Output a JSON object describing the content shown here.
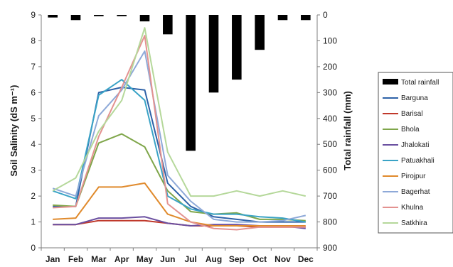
{
  "chart_data": {
    "type": "line",
    "categories": [
      "Jan",
      "Feb",
      "Mar",
      "Apr",
      "May",
      "Jun",
      "Jul",
      "Aug",
      "Sep",
      "Oct",
      "Nov",
      "Dec"
    ],
    "ylabel": "Soil Salinity (dS m⁻¹)",
    "y2label": "Total rainfall (mm)",
    "ylim": [
      0,
      9
    ],
    "yticks": [
      "0",
      "1",
      "2",
      "3",
      "4",
      "5",
      "6",
      "7",
      "8",
      "9"
    ],
    "y2lim": [
      0,
      900
    ],
    "y2_inverted": true,
    "y2ticks": [
      "0",
      "100",
      "200",
      "300",
      "400",
      "500",
      "600",
      "700",
      "800",
      "900"
    ],
    "grid": false,
    "legend_position": "right",
    "rainfall": {
      "name": "Total rainfall",
      "color": "#000000",
      "values": [
        10,
        20,
        5,
        5,
        25,
        75,
        525,
        300,
        250,
        135,
        20,
        20
      ]
    },
    "series": [
      {
        "name": "Barguna",
        "color": "#2e62a8",
        "values": [
          1.6,
          1.6,
          6.0,
          6.2,
          6.1,
          2.5,
          1.6,
          1.2,
          1.1,
          1.0,
          1.0,
          1.0
        ]
      },
      {
        "name": "Barisal",
        "color": "#c0392b",
        "values": [
          0.9,
          0.9,
          1.05,
          1.05,
          1.05,
          0.95,
          0.85,
          0.85,
          0.85,
          0.8,
          0.8,
          0.8
        ]
      },
      {
        "name": "Bhola",
        "color": "#7fa64a",
        "values": [
          1.65,
          1.6,
          4.05,
          4.4,
          3.9,
          2.2,
          1.4,
          1.3,
          1.35,
          1.1,
          1.1,
          1.05
        ]
      },
      {
        "name": "Jhalokati",
        "color": "#6a4fa0",
        "values": [
          0.9,
          0.9,
          1.15,
          1.15,
          1.2,
          0.95,
          0.85,
          0.9,
          0.9,
          0.85,
          0.85,
          0.75
        ]
      },
      {
        "name": "Patuakhali",
        "color": "#3aa3c6",
        "values": [
          2.2,
          1.9,
          5.9,
          6.5,
          5.7,
          2.0,
          1.5,
          1.3,
          1.3,
          1.2,
          1.15,
          1.0
        ]
      },
      {
        "name": "Pirojpur",
        "color": "#e08a2c",
        "values": [
          1.1,
          1.15,
          2.35,
          2.35,
          2.5,
          1.3,
          1.0,
          0.85,
          0.85,
          0.85,
          0.85,
          0.85
        ]
      },
      {
        "name": "Bagerhat",
        "color": "#8ea9d8",
        "values": [
          2.3,
          2.0,
          5.1,
          6.1,
          7.6,
          2.8,
          1.8,
          1.1,
          1.0,
          1.0,
          1.05,
          1.25
        ]
      },
      {
        "name": "Khulna",
        "color": "#e39290",
        "values": [
          1.55,
          1.6,
          4.3,
          6.2,
          8.2,
          1.7,
          1.0,
          0.75,
          0.7,
          0.8,
          0.8,
          0.8
        ]
      },
      {
        "name": "Satkhira",
        "color": "#b5d89a",
        "values": [
          2.2,
          2.7,
          4.5,
          5.7,
          8.5,
          3.7,
          2.0,
          2.0,
          2.2,
          2.0,
          2.2,
          2.0
        ]
      }
    ]
  }
}
